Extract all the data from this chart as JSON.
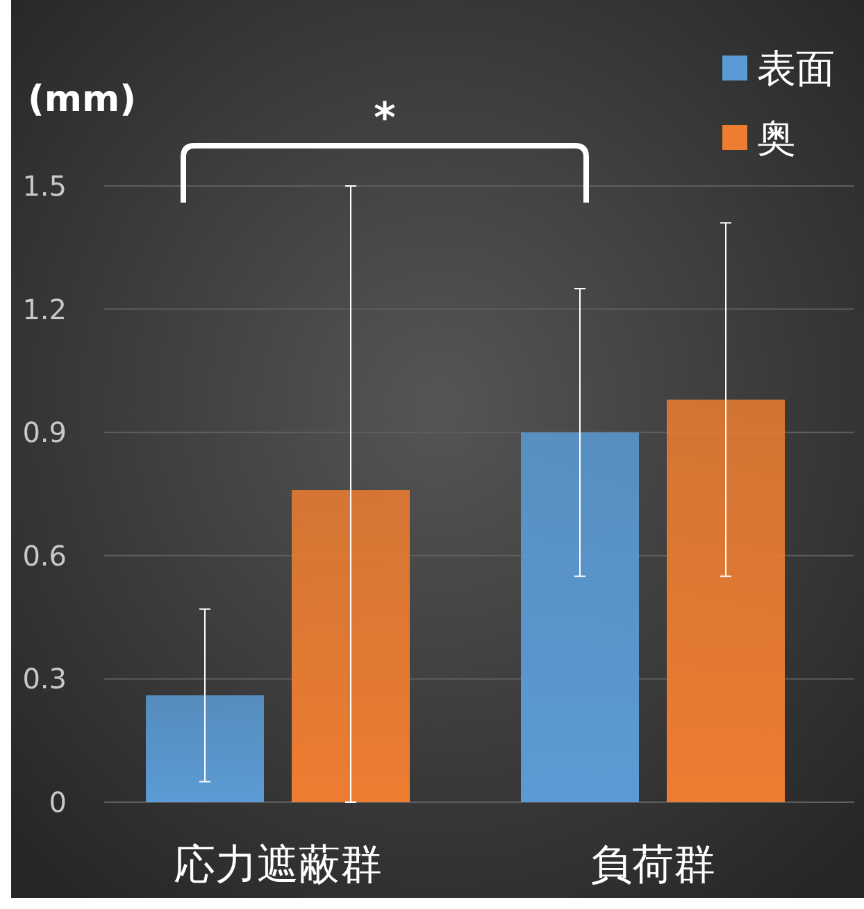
{
  "chart_data": {
    "type": "bar",
    "ylabel": "(mm)",
    "categories": [
      "応力遮蔽群",
      "負荷群"
    ],
    "series": [
      {
        "name": "表面",
        "color": "#5b9bd5",
        "values": [
          0.26,
          0.9
        ],
        "errors": [
          [
            0.05,
            0.47
          ],
          [
            0.55,
            1.25
          ]
        ]
      },
      {
        "name": "奥",
        "color": "#ed7d31",
        "values": [
          0.76,
          0.98
        ],
        "errors": [
          [
            0,
            1.5
          ],
          [
            0.55,
            1.41
          ]
        ]
      }
    ],
    "ylim": [
      0,
      1.5
    ],
    "yticks": [
      0,
      0.3,
      0.6,
      0.9,
      1.2,
      1.5
    ],
    "grid": "y",
    "legend": "top right",
    "annotations": [
      "*"
    ]
  }
}
